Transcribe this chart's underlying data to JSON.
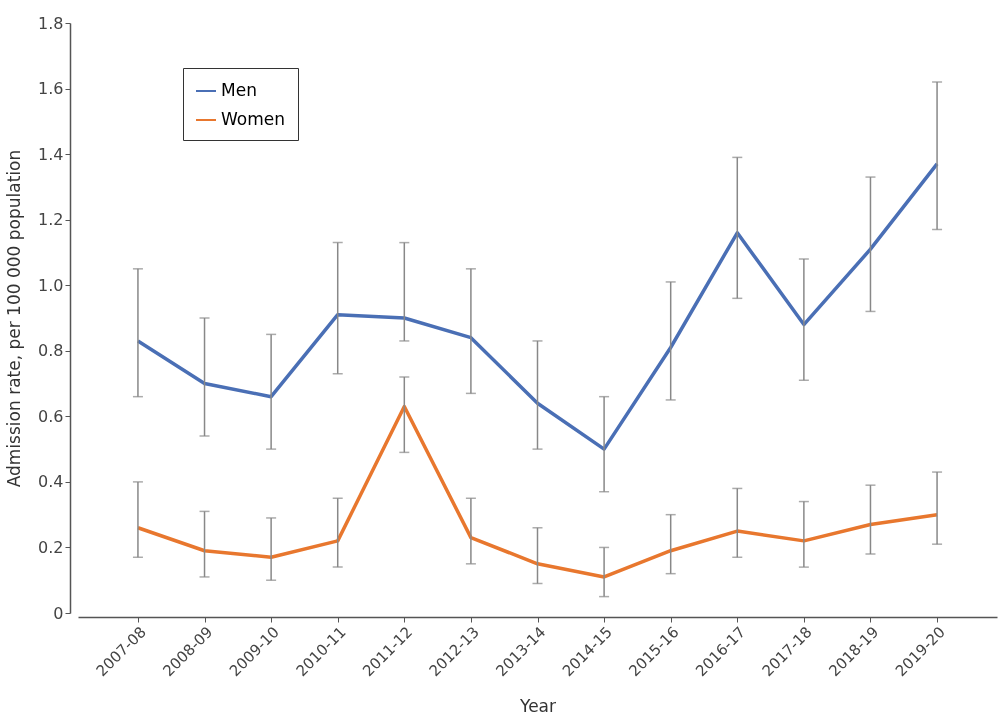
{
  "chart_data": {
    "type": "line",
    "xlabel": "Year",
    "ylabel": "Admission rate, per 100 000 population",
    "categories": [
      "2007-08",
      "2008-09",
      "2009-10",
      "2010-11",
      "2011-12",
      "2012-13",
      "2013-14",
      "2014-15",
      "2015-16",
      "2016-17",
      "2017-18",
      "2018-19",
      "2019-20"
    ],
    "series": [
      {
        "name": "Men",
        "color": "#4a6fb5",
        "values": [
          0.83,
          0.7,
          0.66,
          0.91,
          0.9,
          0.84,
          0.64,
          0.5,
          0.81,
          1.16,
          0.88,
          1.11,
          1.37
        ],
        "errors": [
          [
            0.66,
            1.05
          ],
          [
            0.54,
            0.9
          ],
          [
            0.5,
            0.85
          ],
          [
            0.73,
            1.13
          ],
          [
            0.83,
            1.13
          ],
          [
            0.67,
            1.05
          ],
          [
            0.5,
            0.83
          ],
          [
            0.37,
            0.66
          ],
          [
            0.65,
            1.01
          ],
          [
            0.96,
            1.39
          ],
          [
            0.71,
            1.08
          ],
          [
            0.92,
            1.33
          ],
          [
            1.17,
            1.62
          ]
        ]
      },
      {
        "name": "Women",
        "color": "#e8772e",
        "values": [
          0.26,
          0.19,
          0.17,
          0.22,
          0.63,
          0.23,
          0.15,
          0.11,
          0.19,
          0.25,
          0.22,
          0.27,
          0.3
        ],
        "errors": [
          [
            0.17,
            0.4
          ],
          [
            0.11,
            0.31
          ],
          [
            0.1,
            0.29
          ],
          [
            0.14,
            0.35
          ],
          [
            0.49,
            0.72
          ],
          [
            0.15,
            0.35
          ],
          [
            0.09,
            0.26
          ],
          [
            0.05,
            0.2
          ],
          [
            0.12,
            0.3
          ],
          [
            0.17,
            0.38
          ],
          [
            0.14,
            0.34
          ],
          [
            0.18,
            0.39
          ],
          [
            0.21,
            0.43
          ]
        ]
      }
    ],
    "ylim": [
      0,
      1.8
    ],
    "yticks": [
      0,
      0.2,
      0.4,
      0.6,
      0.8,
      {
        "value": 1,
        "label": "1.0"
      },
      1.2,
      1.4,
      1.6,
      1.8
    ],
    "legend": "top left",
    "grid": false,
    "marker": "none",
    "line_style": "solid"
  }
}
